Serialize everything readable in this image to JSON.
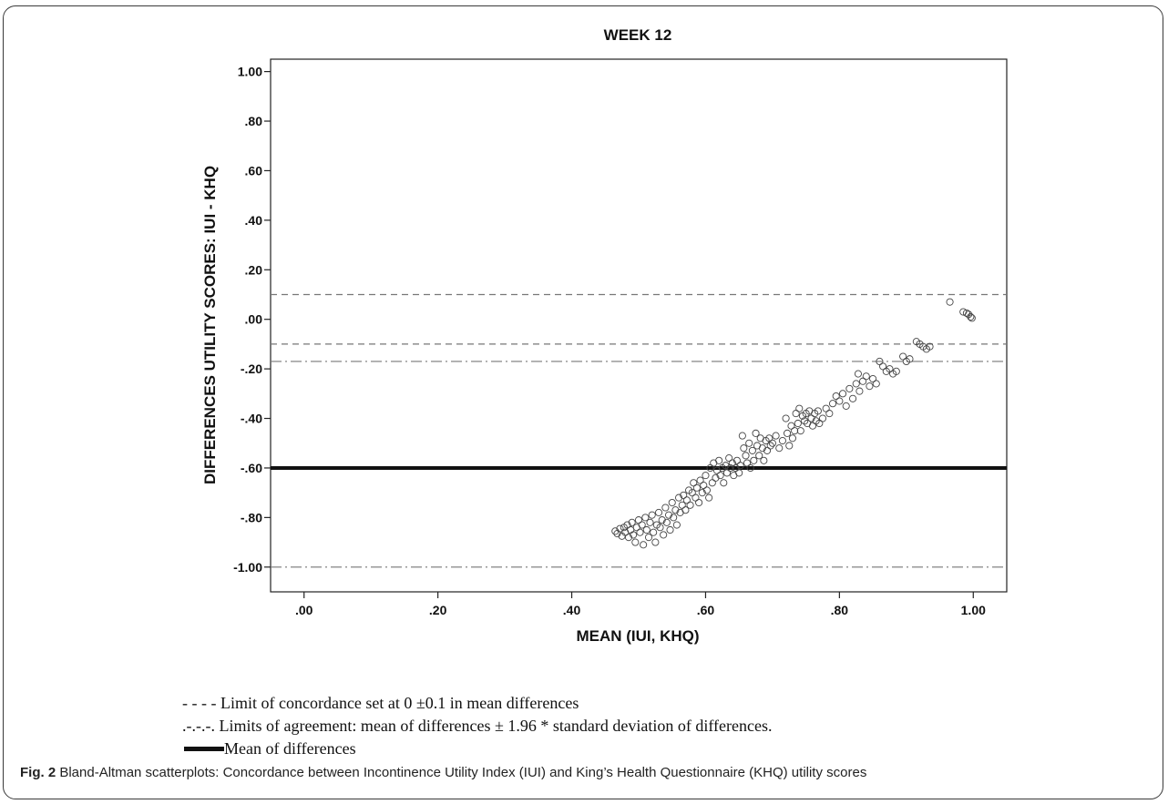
{
  "chart_data": {
    "type": "scatter",
    "title": "WEEK 12",
    "xlabel": "MEAN (IUI, KHQ)",
    "ylabel": "DIFFERENCES UTILITY SCORES: IUI - KHQ",
    "xlim": [
      -0.05,
      1.05
    ],
    "ylim": [
      -1.1,
      1.05
    ],
    "x_ticks": [
      0.0,
      0.2,
      0.4,
      0.6,
      0.8,
      1.0
    ],
    "x_tick_labels": [
      ".00",
      ".20",
      ".40",
      ".60",
      ".80",
      "1.00"
    ],
    "y_ticks": [
      1.0,
      0.8,
      0.6,
      0.4,
      0.2,
      0.0,
      -0.2,
      -0.4,
      -0.6,
      -0.8,
      -1.0
    ],
    "y_tick_labels": [
      "1.00",
      ".80",
      ".60",
      ".40",
      ".20",
      ".00",
      "-.20",
      "-.40",
      "-.60",
      "-.80",
      "-1.00"
    ],
    "grid": false,
    "reference_lines": [
      {
        "y": 0.1,
        "style": "dashed"
      },
      {
        "y": -0.1,
        "style": "dashed"
      },
      {
        "y": -0.17,
        "style": "dash-dot"
      },
      {
        "y": -1.0,
        "style": "dash-dot"
      },
      {
        "y": -0.6,
        "style": "solid-thick"
      }
    ],
    "points": [
      [
        0.465,
        -0.855
      ],
      [
        0.468,
        -0.865
      ],
      [
        0.472,
        -0.845
      ],
      [
        0.475,
        -0.875
      ],
      [
        0.478,
        -0.84
      ],
      [
        0.48,
        -0.86
      ],
      [
        0.483,
        -0.83
      ],
      [
        0.485,
        -0.88
      ],
      [
        0.488,
        -0.85
      ],
      [
        0.49,
        -0.82
      ],
      [
        0.492,
        -0.87
      ],
      [
        0.495,
        -0.9
      ],
      [
        0.497,
        -0.84
      ],
      [
        0.5,
        -0.81
      ],
      [
        0.502,
        -0.86
      ],
      [
        0.505,
        -0.83
      ],
      [
        0.507,
        -0.91
      ],
      [
        0.51,
        -0.8
      ],
      [
        0.512,
        -0.85
      ],
      [
        0.515,
        -0.88
      ],
      [
        0.517,
        -0.82
      ],
      [
        0.52,
        -0.79
      ],
      [
        0.522,
        -0.86
      ],
      [
        0.525,
        -0.9
      ],
      [
        0.527,
        -0.83
      ],
      [
        0.53,
        -0.78
      ],
      [
        0.532,
        -0.84
      ],
      [
        0.535,
        -0.81
      ],
      [
        0.537,
        -0.87
      ],
      [
        0.54,
        -0.76
      ],
      [
        0.542,
        -0.82
      ],
      [
        0.545,
        -0.79
      ],
      [
        0.547,
        -0.85
      ],
      [
        0.55,
        -0.74
      ],
      [
        0.552,
        -0.8
      ],
      [
        0.555,
        -0.77
      ],
      [
        0.557,
        -0.83
      ],
      [
        0.56,
        -0.72
      ],
      [
        0.562,
        -0.78
      ],
      [
        0.565,
        -0.75
      ],
      [
        0.567,
        -0.71
      ],
      [
        0.57,
        -0.77
      ],
      [
        0.572,
        -0.73
      ],
      [
        0.575,
        -0.69
      ],
      [
        0.577,
        -0.75
      ],
      [
        0.58,
        -0.7
      ],
      [
        0.582,
        -0.66
      ],
      [
        0.585,
        -0.72
      ],
      [
        0.587,
        -0.68
      ],
      [
        0.59,
        -0.74
      ],
      [
        0.592,
        -0.65
      ],
      [
        0.595,
        -0.7
      ],
      [
        0.597,
        -0.67
      ],
      [
        0.6,
        -0.63
      ],
      [
        0.602,
        -0.69
      ],
      [
        0.605,
        -0.72
      ],
      [
        0.607,
        -0.6
      ],
      [
        0.61,
        -0.66
      ],
      [
        0.612,
        -0.58
      ],
      [
        0.615,
        -0.64
      ],
      [
        0.617,
        -0.61
      ],
      [
        0.62,
        -0.57
      ],
      [
        0.622,
        -0.63
      ],
      [
        0.625,
        -0.6
      ],
      [
        0.627,
        -0.66
      ],
      [
        0.63,
        -0.59
      ],
      [
        0.632,
        -0.62
      ],
      [
        0.635,
        -0.56
      ],
      [
        0.637,
        -0.6
      ],
      [
        0.64,
        -0.58
      ],
      [
        0.642,
        -0.63
      ],
      [
        0.645,
        -0.6
      ],
      [
        0.647,
        -0.57
      ],
      [
        0.65,
        -0.62
      ],
      [
        0.652,
        -0.59
      ],
      [
        0.655,
        -0.47
      ],
      [
        0.657,
        -0.52
      ],
      [
        0.66,
        -0.55
      ],
      [
        0.662,
        -0.58
      ],
      [
        0.665,
        -0.5
      ],
      [
        0.667,
        -0.6
      ],
      [
        0.67,
        -0.53
      ],
      [
        0.672,
        -0.57
      ],
      [
        0.675,
        -0.46
      ],
      [
        0.677,
        -0.51
      ],
      [
        0.68,
        -0.55
      ],
      [
        0.682,
        -0.48
      ],
      [
        0.685,
        -0.52
      ],
      [
        0.687,
        -0.57
      ],
      [
        0.69,
        -0.49
      ],
      [
        0.692,
        -0.53
      ],
      [
        0.695,
        -0.48
      ],
      [
        0.697,
        -0.51
      ],
      [
        0.7,
        -0.5
      ],
      [
        0.705,
        -0.47
      ],
      [
        0.71,
        -0.52
      ],
      [
        0.715,
        -0.49
      ],
      [
        0.72,
        -0.4
      ],
      [
        0.722,
        -0.46
      ],
      [
        0.725,
        -0.51
      ],
      [
        0.728,
        -0.43
      ],
      [
        0.73,
        -0.48
      ],
      [
        0.733,
        -0.45
      ],
      [
        0.735,
        -0.38
      ],
      [
        0.738,
        -0.42
      ],
      [
        0.74,
        -0.36
      ],
      [
        0.742,
        -0.45
      ],
      [
        0.745,
        -0.39
      ],
      [
        0.748,
        -0.41
      ],
      [
        0.75,
        -0.38
      ],
      [
        0.752,
        -0.42
      ],
      [
        0.755,
        -0.37
      ],
      [
        0.758,
        -0.4
      ],
      [
        0.76,
        -0.43
      ],
      [
        0.763,
        -0.38
      ],
      [
        0.765,
        -0.41
      ],
      [
        0.768,
        -0.37
      ],
      [
        0.77,
        -0.42
      ],
      [
        0.775,
        -0.4
      ],
      [
        0.78,
        -0.36
      ],
      [
        0.785,
        -0.38
      ],
      [
        0.79,
        -0.34
      ],
      [
        0.795,
        -0.31
      ],
      [
        0.8,
        -0.33
      ],
      [
        0.805,
        -0.3
      ],
      [
        0.81,
        -0.35
      ],
      [
        0.815,
        -0.28
      ],
      [
        0.82,
        -0.32
      ],
      [
        0.825,
        -0.26
      ],
      [
        0.828,
        -0.22
      ],
      [
        0.83,
        -0.29
      ],
      [
        0.835,
        -0.25
      ],
      [
        0.84,
        -0.23
      ],
      [
        0.845,
        -0.27
      ],
      [
        0.85,
        -0.24
      ],
      [
        0.855,
        -0.26
      ],
      [
        0.86,
        -0.17
      ],
      [
        0.865,
        -0.19
      ],
      [
        0.87,
        -0.21
      ],
      [
        0.875,
        -0.2
      ],
      [
        0.88,
        -0.22
      ],
      [
        0.885,
        -0.21
      ],
      [
        0.895,
        -0.15
      ],
      [
        0.9,
        -0.17
      ],
      [
        0.905,
        -0.16
      ],
      [
        0.915,
        -0.09
      ],
      [
        0.92,
        -0.1
      ],
      [
        0.925,
        -0.11
      ],
      [
        0.93,
        -0.12
      ],
      [
        0.935,
        -0.11
      ],
      [
        0.965,
        0.07
      ],
      [
        0.985,
        0.03
      ],
      [
        0.99,
        0.025
      ],
      [
        0.993,
        0.02
      ],
      [
        0.996,
        0.01
      ],
      [
        0.998,
        0.005
      ]
    ]
  },
  "legend": {
    "concordance_marker": "- - - -",
    "concordance_text": "Limit of concordance set at 0 ±0.1 in mean differences",
    "agreement_marker": ".-.-.-.",
    "agreement_text": "Limits of agreement: mean of differences ± 1.96 * standard deviation of differences.",
    "mean_text": "Mean of differences"
  },
  "caption": {
    "label": "Fig. 2",
    "text": "Bland-Altman scatterplots: Concordance between Incontinence Utility Index (IUI) and King’s Health Questionnaire (KHQ) utility scores"
  }
}
